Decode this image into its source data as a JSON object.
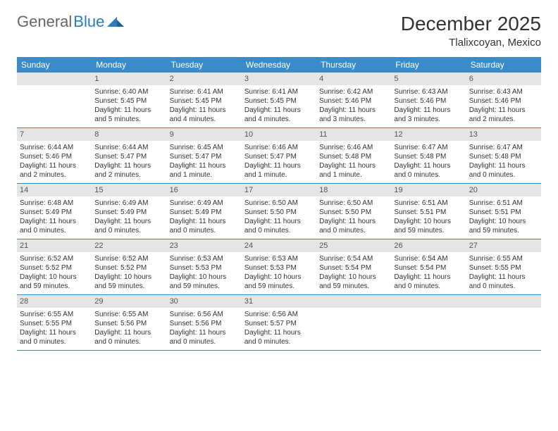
{
  "logo": {
    "part1": "General",
    "part2": "Blue"
  },
  "title": "December 2025",
  "location": "Tlalixcoyan, Mexico",
  "colors": {
    "header_bg": "#3b8bc8",
    "header_text": "#ffffff",
    "daynum_bg": "#e5e5e5",
    "border": "#3b8bc8",
    "text": "#333333",
    "logo_accent": "#2b7bbf"
  },
  "typography": {
    "title_fontsize": 28,
    "location_fontsize": 15,
    "dow_fontsize": 12,
    "cell_fontsize": 10
  },
  "dow": [
    "Sunday",
    "Monday",
    "Tuesday",
    "Wednesday",
    "Thursday",
    "Friday",
    "Saturday"
  ],
  "weeks": [
    [
      null,
      {
        "num": "1",
        "sunrise": "Sunrise: 6:40 AM",
        "sunset": "Sunset: 5:45 PM",
        "daylight": "Daylight: 11 hours and 5 minutes."
      },
      {
        "num": "2",
        "sunrise": "Sunrise: 6:41 AM",
        "sunset": "Sunset: 5:45 PM",
        "daylight": "Daylight: 11 hours and 4 minutes."
      },
      {
        "num": "3",
        "sunrise": "Sunrise: 6:41 AM",
        "sunset": "Sunset: 5:45 PM",
        "daylight": "Daylight: 11 hours and 4 minutes."
      },
      {
        "num": "4",
        "sunrise": "Sunrise: 6:42 AM",
        "sunset": "Sunset: 5:46 PM",
        "daylight": "Daylight: 11 hours and 3 minutes."
      },
      {
        "num": "5",
        "sunrise": "Sunrise: 6:43 AM",
        "sunset": "Sunset: 5:46 PM",
        "daylight": "Daylight: 11 hours and 3 minutes."
      },
      {
        "num": "6",
        "sunrise": "Sunrise: 6:43 AM",
        "sunset": "Sunset: 5:46 PM",
        "daylight": "Daylight: 11 hours and 2 minutes."
      }
    ],
    [
      {
        "num": "7",
        "sunrise": "Sunrise: 6:44 AM",
        "sunset": "Sunset: 5:46 PM",
        "daylight": "Daylight: 11 hours and 2 minutes."
      },
      {
        "num": "8",
        "sunrise": "Sunrise: 6:44 AM",
        "sunset": "Sunset: 5:47 PM",
        "daylight": "Daylight: 11 hours and 2 minutes."
      },
      {
        "num": "9",
        "sunrise": "Sunrise: 6:45 AM",
        "sunset": "Sunset: 5:47 PM",
        "daylight": "Daylight: 11 hours and 1 minute."
      },
      {
        "num": "10",
        "sunrise": "Sunrise: 6:46 AM",
        "sunset": "Sunset: 5:47 PM",
        "daylight": "Daylight: 11 hours and 1 minute."
      },
      {
        "num": "11",
        "sunrise": "Sunrise: 6:46 AM",
        "sunset": "Sunset: 5:48 PM",
        "daylight": "Daylight: 11 hours and 1 minute."
      },
      {
        "num": "12",
        "sunrise": "Sunrise: 6:47 AM",
        "sunset": "Sunset: 5:48 PM",
        "daylight": "Daylight: 11 hours and 0 minutes."
      },
      {
        "num": "13",
        "sunrise": "Sunrise: 6:47 AM",
        "sunset": "Sunset: 5:48 PM",
        "daylight": "Daylight: 11 hours and 0 minutes."
      }
    ],
    [
      {
        "num": "14",
        "sunrise": "Sunrise: 6:48 AM",
        "sunset": "Sunset: 5:49 PM",
        "daylight": "Daylight: 11 hours and 0 minutes."
      },
      {
        "num": "15",
        "sunrise": "Sunrise: 6:49 AM",
        "sunset": "Sunset: 5:49 PM",
        "daylight": "Daylight: 11 hours and 0 minutes."
      },
      {
        "num": "16",
        "sunrise": "Sunrise: 6:49 AM",
        "sunset": "Sunset: 5:49 PM",
        "daylight": "Daylight: 11 hours and 0 minutes."
      },
      {
        "num": "17",
        "sunrise": "Sunrise: 6:50 AM",
        "sunset": "Sunset: 5:50 PM",
        "daylight": "Daylight: 11 hours and 0 minutes."
      },
      {
        "num": "18",
        "sunrise": "Sunrise: 6:50 AM",
        "sunset": "Sunset: 5:50 PM",
        "daylight": "Daylight: 11 hours and 0 minutes."
      },
      {
        "num": "19",
        "sunrise": "Sunrise: 6:51 AM",
        "sunset": "Sunset: 5:51 PM",
        "daylight": "Daylight: 10 hours and 59 minutes."
      },
      {
        "num": "20",
        "sunrise": "Sunrise: 6:51 AM",
        "sunset": "Sunset: 5:51 PM",
        "daylight": "Daylight: 10 hours and 59 minutes."
      }
    ],
    [
      {
        "num": "21",
        "sunrise": "Sunrise: 6:52 AM",
        "sunset": "Sunset: 5:52 PM",
        "daylight": "Daylight: 10 hours and 59 minutes."
      },
      {
        "num": "22",
        "sunrise": "Sunrise: 6:52 AM",
        "sunset": "Sunset: 5:52 PM",
        "daylight": "Daylight: 10 hours and 59 minutes."
      },
      {
        "num": "23",
        "sunrise": "Sunrise: 6:53 AM",
        "sunset": "Sunset: 5:53 PM",
        "daylight": "Daylight: 10 hours and 59 minutes."
      },
      {
        "num": "24",
        "sunrise": "Sunrise: 6:53 AM",
        "sunset": "Sunset: 5:53 PM",
        "daylight": "Daylight: 10 hours and 59 minutes."
      },
      {
        "num": "25",
        "sunrise": "Sunrise: 6:54 AM",
        "sunset": "Sunset: 5:54 PM",
        "daylight": "Daylight: 10 hours and 59 minutes."
      },
      {
        "num": "26",
        "sunrise": "Sunrise: 6:54 AM",
        "sunset": "Sunset: 5:54 PM",
        "daylight": "Daylight: 11 hours and 0 minutes."
      },
      {
        "num": "27",
        "sunrise": "Sunrise: 6:55 AM",
        "sunset": "Sunset: 5:55 PM",
        "daylight": "Daylight: 11 hours and 0 minutes."
      }
    ],
    [
      {
        "num": "28",
        "sunrise": "Sunrise: 6:55 AM",
        "sunset": "Sunset: 5:55 PM",
        "daylight": "Daylight: 11 hours and 0 minutes."
      },
      {
        "num": "29",
        "sunrise": "Sunrise: 6:55 AM",
        "sunset": "Sunset: 5:56 PM",
        "daylight": "Daylight: 11 hours and 0 minutes."
      },
      {
        "num": "30",
        "sunrise": "Sunrise: 6:56 AM",
        "sunset": "Sunset: 5:56 PM",
        "daylight": "Daylight: 11 hours and 0 minutes."
      },
      {
        "num": "31",
        "sunrise": "Sunrise: 6:56 AM",
        "sunset": "Sunset: 5:57 PM",
        "daylight": "Daylight: 11 hours and 0 minutes."
      },
      null,
      null,
      null
    ]
  ]
}
